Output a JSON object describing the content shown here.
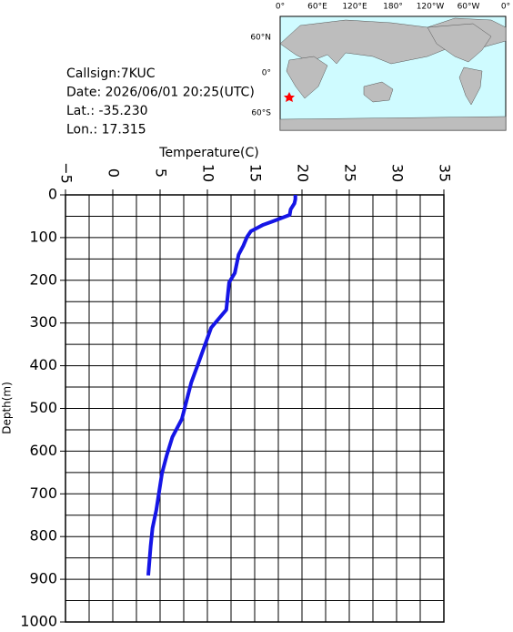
{
  "chart_data": {
    "type": "line",
    "info": [
      "Callsign:7KUC",
      "Date:  2026/06/01 20:25(UTC)",
      "Lat.:  -35.230",
      "Lon.:   17.315"
    ],
    "map": {
      "lon_labels": [
        "0°",
        "60°E",
        "120°E",
        "180°",
        "120°W",
        "60°W",
        "0°"
      ],
      "lat_labels": [
        "60°N",
        "0°",
        "60°S"
      ]
    },
    "x_label": "Temperature(C)",
    "y_label": "Depth(m)",
    "xlim": [
      -5,
      35
    ],
    "xticks": [
      {
        "value": -5,
        "label": "−5"
      },
      0,
      5,
      10,
      15,
      20,
      25,
      30,
      35
    ],
    "ylim": [
      1000,
      0
    ],
    "yticks": [
      0,
      100,
      200,
      300,
      400,
      500,
      600,
      700,
      800,
      900,
      1000
    ],
    "xgrid": [
      -2.5,
      0,
      2.5,
      5,
      7.5,
      10,
      12.5,
      15,
      17.5,
      20,
      22.5,
      25,
      27.5,
      30,
      32.5
    ],
    "ygrid": [
      50,
      100,
      150,
      200,
      250,
      300,
      350,
      400,
      450,
      500,
      550,
      600,
      650,
      700,
      750,
      800,
      850,
      900,
      950
    ],
    "grid": true,
    "series": [
      {
        "color": "#1515e6",
        "x": [
          19.3,
          19.3,
          19.2,
          18.8,
          18.7,
          16.9,
          15.9,
          15.3,
          14.6,
          14.2,
          13.8,
          13.3,
          12.9,
          12.3,
          12.0,
          11.2,
          10.4,
          9.7,
          9.0,
          8.3,
          7.8,
          7.3,
          6.3,
          5.7,
          5.2,
          4.9,
          4.6,
          4.2,
          4.0,
          3.75
        ],
        "values": [
          0,
          10,
          20,
          34,
          47,
          62,
          70,
          77,
          85,
          98,
          119,
          140,
          183,
          205,
          269,
          290,
          311,
          354,
          397,
          439,
          482,
          525,
          567,
          610,
          652,
          695,
          738,
          780,
          823,
          891
        ]
      }
    ]
  }
}
